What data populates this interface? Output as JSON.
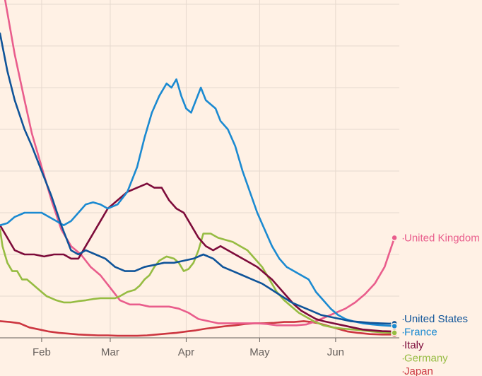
{
  "colors": {
    "background": "#fff1e5",
    "grid": "#e6d9ce",
    "axis": "#66605c"
  },
  "chart_data": {
    "type": "line",
    "title": "",
    "xlabel": "",
    "ylabel": "",
    "x_ticks": [
      "Feb",
      "Mar",
      "Apr",
      "May",
      "Jun"
    ],
    "x_tick_days": [
      31,
      59,
      90,
      120,
      151
    ],
    "x_range_days": [
      14,
      177
    ],
    "y_range": [
      0,
      80
    ],
    "y_gridlines": [
      10,
      20,
      30,
      40,
      50,
      60,
      70,
      80
    ],
    "grid": true,
    "legend": "direct labels at line ends (right)",
    "series": [
      {
        "name": "United Kingdom",
        "color": "#e95d8c",
        "values": [
          [
            14,
            88
          ],
          [
            17,
            78
          ],
          [
            20,
            68
          ],
          [
            24,
            57
          ],
          [
            27,
            49
          ],
          [
            31,
            41
          ],
          [
            35,
            33
          ],
          [
            39,
            26
          ],
          [
            43,
            22
          ],
          [
            47,
            20
          ],
          [
            51,
            17
          ],
          [
            55,
            15
          ],
          [
            59,
            12
          ],
          [
            63,
            9
          ],
          [
            67,
            8
          ],
          [
            71,
            8
          ],
          [
            75,
            7.5
          ],
          [
            79,
            7.5
          ],
          [
            83,
            7.5
          ],
          [
            87,
            7
          ],
          [
            91,
            6
          ],
          [
            95,
            4.5
          ],
          [
            99,
            4
          ],
          [
            103,
            3.5
          ],
          [
            107,
            3.5
          ],
          [
            111,
            3.5
          ],
          [
            115,
            3.5
          ],
          [
            119,
            3.5
          ],
          [
            123,
            3.3
          ],
          [
            127,
            3
          ],
          [
            131,
            3
          ],
          [
            135,
            3
          ],
          [
            139,
            3.2
          ],
          [
            143,
            4
          ],
          [
            147,
            5
          ],
          [
            151,
            6
          ],
          [
            155,
            7
          ],
          [
            159,
            8.5
          ],
          [
            163,
            10.5
          ],
          [
            167,
            13
          ],
          [
            171,
            17
          ],
          [
            175,
            24
          ]
        ]
      },
      {
        "name": "United States",
        "color": "#0f5499",
        "values": [
          [
            14,
            73
          ],
          [
            17,
            64
          ],
          [
            20,
            57
          ],
          [
            24,
            50
          ],
          [
            27,
            46
          ],
          [
            31,
            40
          ],
          [
            35,
            34
          ],
          [
            39,
            27
          ],
          [
            43,
            21
          ],
          [
            46,
            20
          ],
          [
            49,
            21
          ],
          [
            53,
            20
          ],
          [
            57,
            19
          ],
          [
            61,
            17
          ],
          [
            65,
            16
          ],
          [
            69,
            16
          ],
          [
            73,
            17
          ],
          [
            77,
            17.5
          ],
          [
            81,
            18
          ],
          [
            85,
            18
          ],
          [
            89,
            18.5
          ],
          [
            93,
            19
          ],
          [
            97,
            20
          ],
          [
            101,
            19
          ],
          [
            105,
            17
          ],
          [
            109,
            16
          ],
          [
            113,
            15
          ],
          [
            117,
            14
          ],
          [
            121,
            13
          ],
          [
            125,
            11.5
          ],
          [
            129,
            10
          ],
          [
            133,
            8.5
          ],
          [
            137,
            7.5
          ],
          [
            141,
            6.5
          ],
          [
            145,
            5.5
          ],
          [
            149,
            5
          ],
          [
            153,
            4.5
          ],
          [
            157,
            4
          ],
          [
            161,
            3.8
          ],
          [
            165,
            3.6
          ],
          [
            169,
            3.5
          ],
          [
            173,
            3.4
          ],
          [
            175,
            3.5
          ]
        ]
      },
      {
        "name": "France",
        "color": "#1b8ad1",
        "values": [
          [
            14,
            27
          ],
          [
            17,
            27.5
          ],
          [
            20,
            29
          ],
          [
            24,
            30
          ],
          [
            28,
            30
          ],
          [
            31,
            30
          ],
          [
            34,
            29
          ],
          [
            37,
            28
          ],
          [
            40,
            27
          ],
          [
            43,
            28
          ],
          [
            46,
            30
          ],
          [
            49,
            32
          ],
          [
            52,
            32.5
          ],
          [
            55,
            32
          ],
          [
            58,
            31
          ],
          [
            62,
            32
          ],
          [
            66,
            35
          ],
          [
            70,
            41
          ],
          [
            73,
            48
          ],
          [
            76,
            54
          ],
          [
            79,
            58
          ],
          [
            82,
            61
          ],
          [
            84,
            60
          ],
          [
            86,
            62
          ],
          [
            88,
            58
          ],
          [
            90,
            55
          ],
          [
            92,
            54
          ],
          [
            94,
            57
          ],
          [
            96,
            60
          ],
          [
            98,
            57
          ],
          [
            100,
            56
          ],
          [
            102,
            55
          ],
          [
            104,
            52
          ],
          [
            107,
            50
          ],
          [
            110,
            46
          ],
          [
            113,
            40
          ],
          [
            116,
            35
          ],
          [
            119,
            30
          ],
          [
            122,
            26
          ],
          [
            125,
            22
          ],
          [
            128,
            19
          ],
          [
            131,
            17
          ],
          [
            134,
            16
          ],
          [
            137,
            15
          ],
          [
            140,
            14
          ],
          [
            143,
            11
          ],
          [
            146,
            9
          ],
          [
            149,
            7
          ],
          [
            152,
            5.5
          ],
          [
            155,
            4.5
          ],
          [
            158,
            4
          ],
          [
            162,
            3.5
          ],
          [
            166,
            3.2
          ],
          [
            170,
            3
          ],
          [
            175,
            2.8
          ]
        ]
      },
      {
        "name": "Italy",
        "color": "#7d0b3a",
        "values": [
          [
            14,
            27
          ],
          [
            17,
            24
          ],
          [
            20,
            21
          ],
          [
            24,
            20
          ],
          [
            28,
            20
          ],
          [
            32,
            19.5
          ],
          [
            36,
            20
          ],
          [
            40,
            20
          ],
          [
            43,
            19
          ],
          [
            46,
            19
          ],
          [
            49,
            22
          ],
          [
            52,
            25
          ],
          [
            55,
            28
          ],
          [
            58,
            31
          ],
          [
            62,
            33
          ],
          [
            66,
            35
          ],
          [
            70,
            36
          ],
          [
            74,
            37
          ],
          [
            77,
            36
          ],
          [
            80,
            36
          ],
          [
            83,
            33
          ],
          [
            86,
            31
          ],
          [
            89,
            30
          ],
          [
            92,
            27
          ],
          [
            95,
            24
          ],
          [
            98,
            22
          ],
          [
            101,
            21
          ],
          [
            104,
            22
          ],
          [
            107,
            21
          ],
          [
            110,
            20
          ],
          [
            113,
            19
          ],
          [
            116,
            18
          ],
          [
            119,
            17
          ],
          [
            122,
            15.5
          ],
          [
            125,
            14
          ],
          [
            128,
            12
          ],
          [
            131,
            10
          ],
          [
            134,
            8
          ],
          [
            137,
            6.5
          ],
          [
            140,
            5.5
          ],
          [
            143,
            4.5
          ],
          [
            146,
            4
          ],
          [
            150,
            3.5
          ],
          [
            154,
            3
          ],
          [
            158,
            2.5
          ],
          [
            162,
            2
          ],
          [
            166,
            1.8
          ],
          [
            170,
            1.6
          ],
          [
            175,
            1.5
          ]
        ]
      },
      {
        "name": "Japan",
        "color": "#cc3640",
        "values": [
          [
            14,
            4
          ],
          [
            18,
            3.8
          ],
          [
            22,
            3.5
          ],
          [
            26,
            2.5
          ],
          [
            30,
            2
          ],
          [
            34,
            1.5
          ],
          [
            38,
            1.2
          ],
          [
            42,
            1
          ],
          [
            46,
            0.8
          ],
          [
            50,
            0.7
          ],
          [
            54,
            0.6
          ],
          [
            58,
            0.6
          ],
          [
            62,
            0.5
          ],
          [
            66,
            0.5
          ],
          [
            70,
            0.5
          ],
          [
            74,
            0.6
          ],
          [
            78,
            0.8
          ],
          [
            82,
            1
          ],
          [
            86,
            1.2
          ],
          [
            90,
            1.5
          ],
          [
            94,
            1.8
          ],
          [
            98,
            2.2
          ],
          [
            102,
            2.5
          ],
          [
            106,
            2.8
          ],
          [
            110,
            3
          ],
          [
            114,
            3.3
          ],
          [
            118,
            3.5
          ],
          [
            122,
            3.5
          ],
          [
            126,
            3.6
          ],
          [
            130,
            3.8
          ],
          [
            134,
            3.8
          ],
          [
            138,
            4
          ],
          [
            141,
            3.8
          ],
          [
            144,
            3.5
          ],
          [
            147,
            3
          ],
          [
            150,
            2.5
          ],
          [
            153,
            2
          ],
          [
            156,
            1.5
          ],
          [
            160,
            1.2
          ],
          [
            165,
            0.9
          ],
          [
            170,
            0.8
          ],
          [
            175,
            0.8
          ]
        ]
      },
      {
        "name": "Germany",
        "color": "#96bc42",
        "values": [
          [
            14,
            26
          ],
          [
            15,
            22
          ],
          [
            16,
            20
          ],
          [
            17,
            18
          ],
          [
            19,
            16
          ],
          [
            21,
            16
          ],
          [
            23,
            14
          ],
          [
            25,
            14
          ],
          [
            27,
            13
          ],
          [
            29,
            12
          ],
          [
            31,
            11
          ],
          [
            33,
            10
          ],
          [
            35,
            9.5
          ],
          [
            37,
            9
          ],
          [
            40,
            8.5
          ],
          [
            43,
            8.5
          ],
          [
            46,
            8.8
          ],
          [
            49,
            9
          ],
          [
            52,
            9.3
          ],
          [
            55,
            9.5
          ],
          [
            58,
            9.5
          ],
          [
            61,
            9.5
          ],
          [
            63,
            10
          ],
          [
            66,
            11
          ],
          [
            69,
            11.5
          ],
          [
            71,
            12.5
          ],
          [
            73,
            14
          ],
          [
            75,
            15
          ],
          [
            77,
            17
          ],
          [
            79,
            18.5
          ],
          [
            82,
            19.5
          ],
          [
            85,
            19
          ],
          [
            87,
            18
          ],
          [
            89,
            16
          ],
          [
            91,
            16.5
          ],
          [
            93,
            18
          ],
          [
            95,
            21
          ],
          [
            97,
            25
          ],
          [
            100,
            25
          ],
          [
            103,
            24
          ],
          [
            106,
            23.5
          ],
          [
            109,
            23
          ],
          [
            112,
            22
          ],
          [
            115,
            21
          ],
          [
            118,
            19
          ],
          [
            121,
            17
          ],
          [
            124,
            14
          ],
          [
            127,
            11
          ],
          [
            130,
            9
          ],
          [
            133,
            7.5
          ],
          [
            136,
            6
          ],
          [
            139,
            5
          ],
          [
            142,
            4
          ],
          [
            146,
            3
          ],
          [
            150,
            2.5
          ],
          [
            154,
            2.2
          ],
          [
            158,
            2
          ],
          [
            162,
            1.8
          ],
          [
            166,
            1.5
          ],
          [
            170,
            1.3
          ],
          [
            175,
            1.2
          ]
        ]
      }
    ]
  }
}
